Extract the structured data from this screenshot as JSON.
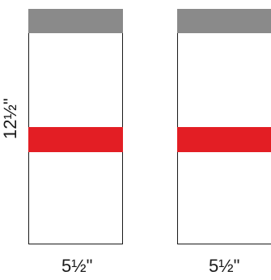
{
  "panels": [
    {
      "width_label": "5½\"",
      "top_band_color": "#8a8a8a",
      "mid_band_color": "#e31e24"
    },
    {
      "width_label": "5½\"",
      "top_band_color": "#8a8a8a",
      "mid_band_color": "#e31e24"
    }
  ],
  "height_label": "12½\""
}
